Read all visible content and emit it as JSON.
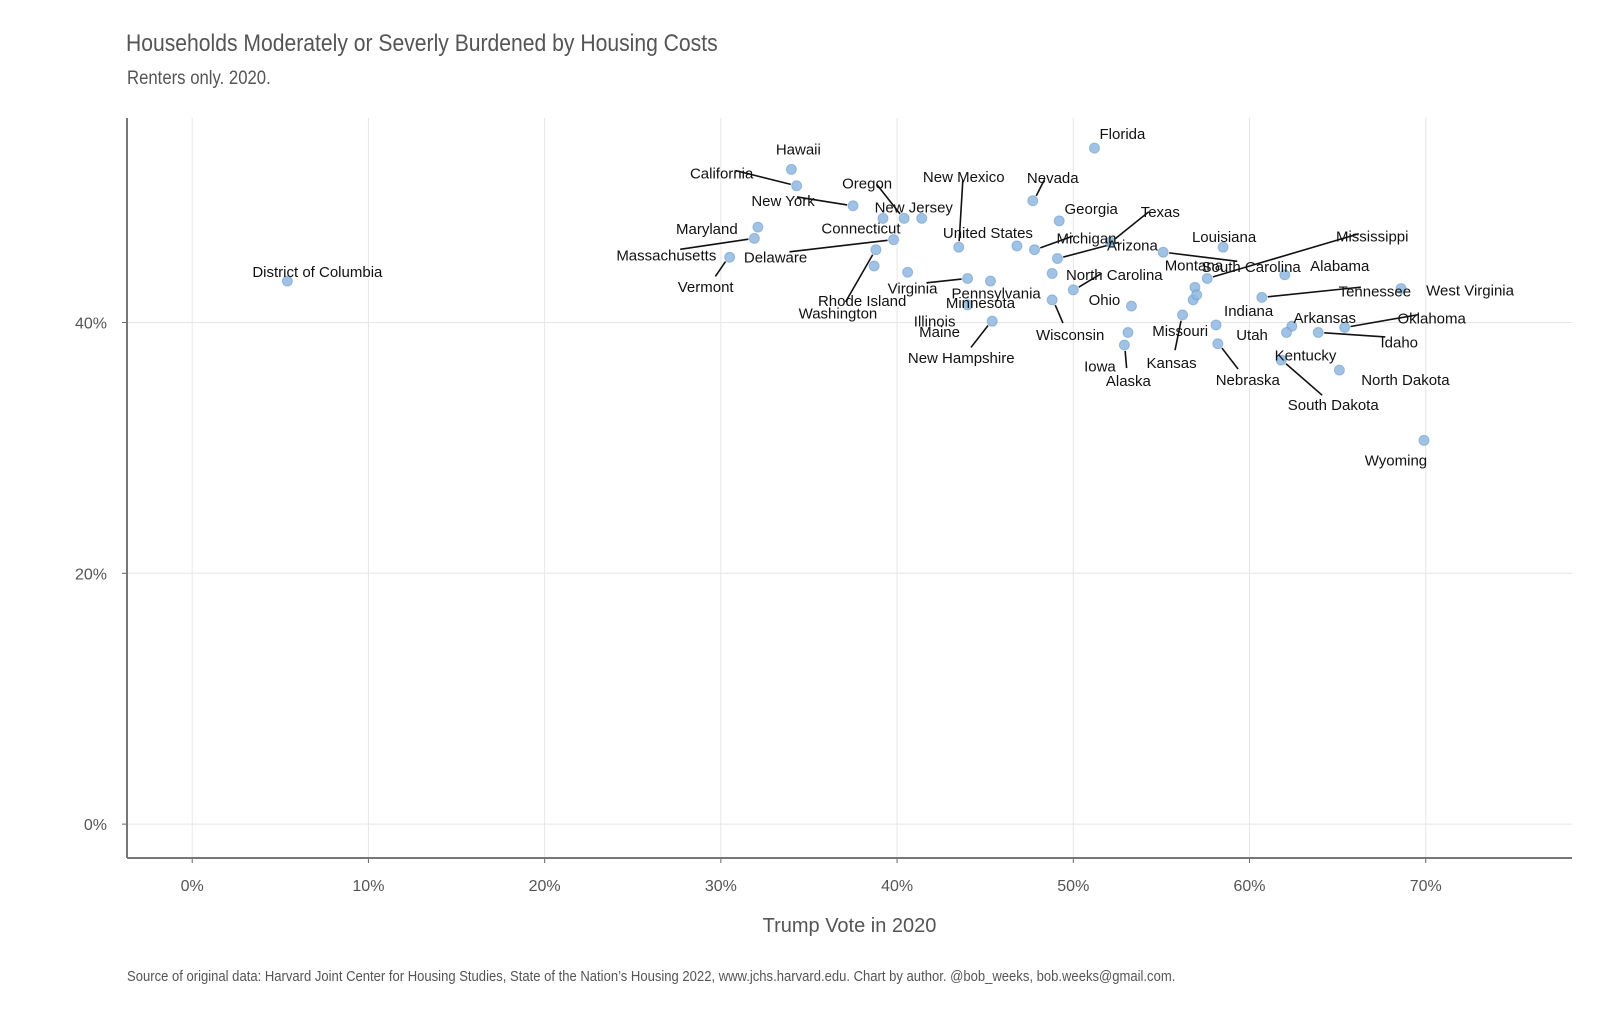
{
  "chart_data": {
    "type": "scatter",
    "title": "Households Moderately or Severly Burdened by Housing Costs",
    "subtitle": "Renters only. 2020.",
    "xlabel": "Trump Vote in 2020",
    "ylabel": "",
    "caption": "Source of original data: Harvard Joint Center for Housing Studies, State of the Nation’s Housing 2022, www.jchs.harvard.edu. Chart by author. @bob_weeks, bob.weeks@gmail.com.",
    "xlim": [
      -3.7,
      78.3
    ],
    "ylim": [
      -2.7,
      56.3
    ],
    "x_ticks": [
      0,
      10,
      20,
      30,
      40,
      50,
      60,
      70
    ],
    "x_tick_labels": [
      "0%",
      "10%",
      "20%",
      "30%",
      "40%",
      "50%",
      "60%",
      "70%"
    ],
    "y_ticks": [
      0,
      20,
      40
    ],
    "y_tick_labels": [
      "0%",
      "20%",
      "40%"
    ],
    "grid": true,
    "point_color": "#8fb8e0",
    "point_stroke": "#5b8fc4",
    "points": [
      {
        "name": "District of Columbia",
        "x": 5.4,
        "y": 43.3
      },
      {
        "name": "Hawaii",
        "x": 34.0,
        "y": 52.2
      },
      {
        "name": "California",
        "x": 34.3,
        "y": 50.9
      },
      {
        "name": "New York",
        "x": 37.5,
        "y": 49.3
      },
      {
        "name": "Maryland",
        "x": 32.1,
        "y": 47.6
      },
      {
        "name": "Massachusetts",
        "x": 31.9,
        "y": 46.7
      },
      {
        "name": "Vermont",
        "x": 30.5,
        "y": 45.2
      },
      {
        "name": "Oregon",
        "x": 40.4,
        "y": 48.3
      },
      {
        "name": "Connecticut",
        "x": 39.2,
        "y": 48.3
      },
      {
        "name": "New Jersey",
        "x": 41.4,
        "y": 48.3
      },
      {
        "name": "Delaware",
        "x": 39.8,
        "y": 46.6
      },
      {
        "name": "Washington",
        "x": 38.8,
        "y": 45.8
      },
      {
        "name": "Rhode Island",
        "x": 38.7,
        "y": 44.5
      },
      {
        "name": "New Mexico",
        "x": 43.5,
        "y": 46.0
      },
      {
        "name": "Virginia",
        "x": 44.0,
        "y": 43.5
      },
      {
        "name": "Illinois",
        "x": 40.6,
        "y": 44.0
      },
      {
        "name": "Nevada",
        "x": 47.7,
        "y": 49.7
      },
      {
        "name": "Florida",
        "x": 51.2,
        "y": 53.9
      },
      {
        "name": "Georgia",
        "x": 49.2,
        "y": 48.1
      },
      {
        "name": "United States",
        "x": 46.8,
        "y": 46.1
      },
      {
        "name": "Michigan",
        "x": 47.8,
        "y": 45.8
      },
      {
        "name": "Texas",
        "x": 52.1,
        "y": 46.4
      },
      {
        "name": "Pennsylvania",
        "x": 48.8,
        "y": 43.9
      },
      {
        "name": "North Carolina",
        "x": 50.0,
        "y": 42.6
      },
      {
        "name": "Minnesota",
        "x": 45.3,
        "y": 43.3
      },
      {
        "name": "Maine",
        "x": 44.0,
        "y": 41.4
      },
      {
        "name": "New Hampshire",
        "x": 45.4,
        "y": 40.1
      },
      {
        "name": "Wisconsin",
        "x": 48.8,
        "y": 41.8
      },
      {
        "name": "Ohio",
        "x": 53.3,
        "y": 41.3
      },
      {
        "name": "Arizona",
        "x": 49.1,
        "y": 45.1
      },
      {
        "name": "Iowa",
        "x": 53.1,
        "y": 39.2
      },
      {
        "name": "Alaska",
        "x": 52.9,
        "y": 38.2
      },
      {
        "name": "South Carolina",
        "x": 55.1,
        "y": 45.6
      },
      {
        "name": "Montana",
        "x": 56.9,
        "y": 42.8
      },
      {
        "name": "Missouri",
        "x": 56.8,
        "y": 41.8
      },
      {
        "name": "Kansas",
        "x": 56.2,
        "y": 40.6
      },
      {
        "name": "Indiana",
        "x": 57.0,
        "y": 42.2
      },
      {
        "name": "Utah",
        "x": 58.1,
        "y": 39.8
      },
      {
        "name": "Nebraska",
        "x": 58.2,
        "y": 38.3
      },
      {
        "name": "Mississippi",
        "x": 57.6,
        "y": 43.5
      },
      {
        "name": "Louisiana",
        "x": 58.5,
        "y": 46.0
      },
      {
        "name": "Alabama",
        "x": 62.0,
        "y": 43.8
      },
      {
        "name": "Tennessee",
        "x": 60.7,
        "y": 42.0
      },
      {
        "name": "Arkansas",
        "x": 62.4,
        "y": 39.7
      },
      {
        "name": "Kentucky",
        "x": 62.1,
        "y": 39.2
      },
      {
        "name": "Idaho",
        "x": 63.9,
        "y": 39.2
      },
      {
        "name": "Oklahoma",
        "x": 65.4,
        "y": 39.6
      },
      {
        "name": "West Virginia",
        "x": 68.6,
        "y": 42.7
      },
      {
        "name": "South Dakota",
        "x": 61.8,
        "y": 37.0
      },
      {
        "name": "North Dakota",
        "x": 65.1,
        "y": 36.2
      },
      {
        "name": "Wyoming",
        "x": 69.9,
        "y": 30.6
      }
    ]
  }
}
